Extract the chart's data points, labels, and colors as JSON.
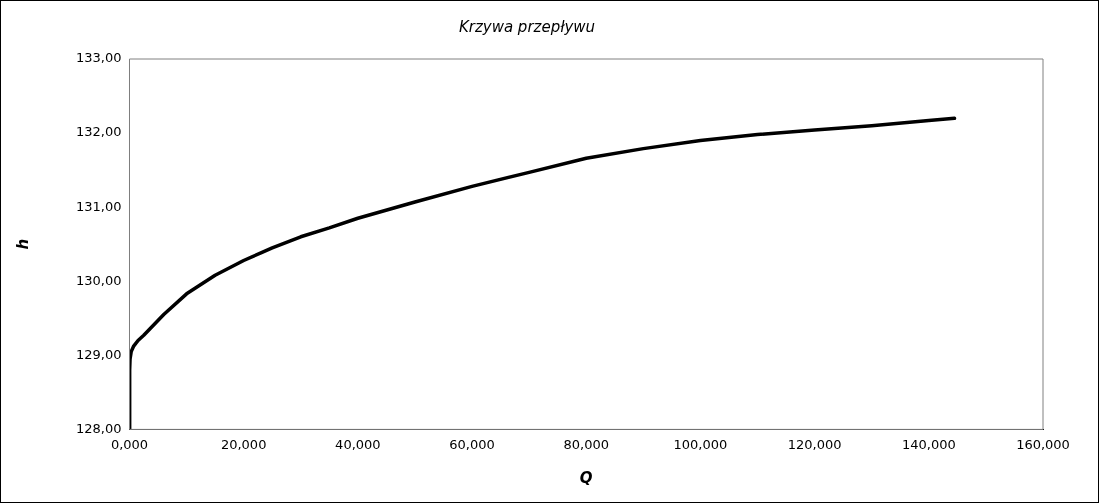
{
  "chart_data": {
    "type": "line",
    "title": "Krzywa przepływu",
    "xlabel": "Q",
    "ylabel": "h",
    "x": [
      0,
      0.03,
      0.1,
      0.3,
      0.7,
      1.5,
      2.5,
      6,
      10,
      15,
      20,
      25,
      30,
      35,
      40,
      50,
      60,
      70,
      80,
      90,
      100,
      110,
      120,
      130,
      140,
      144.5
    ],
    "series": [
      {
        "color": "#000000",
        "values": [
          128.0,
          128.8,
          128.95,
          129.05,
          129.12,
          129.2,
          129.27,
          129.55,
          129.83,
          130.08,
          130.28,
          130.45,
          130.6,
          130.72,
          130.85,
          131.07,
          131.28,
          131.47,
          131.66,
          131.79,
          131.9,
          131.98,
          132.04,
          132.1,
          132.17,
          132.2
        ]
      }
    ],
    "xlim": [
      0,
      160
    ],
    "xticks": [
      {
        "value": 0,
        "label": "0,000"
      },
      {
        "value": 20,
        "label": "20,000"
      },
      {
        "value": 40,
        "label": "40,000"
      },
      {
        "value": 60,
        "label": "60,000"
      },
      {
        "value": 80,
        "label": "80,000"
      },
      {
        "value": 100,
        "label": "100,000"
      },
      {
        "value": 120,
        "label": "120,000"
      },
      {
        "value": 140,
        "label": "140,000"
      },
      {
        "value": 160,
        "label": "160,000"
      }
    ],
    "ylim": [
      128,
      133
    ],
    "yticks": [
      {
        "value": 128,
        "label": "128,00"
      },
      {
        "value": 129,
        "label": "129,00"
      },
      {
        "value": 130,
        "label": "130,00"
      },
      {
        "value": 131,
        "label": "131,00"
      },
      {
        "value": 132,
        "label": "132,00"
      },
      {
        "value": 133,
        "label": "133,00"
      }
    ],
    "grid": false,
    "legend": false,
    "marker": "none",
    "line_style": "solid"
  }
}
